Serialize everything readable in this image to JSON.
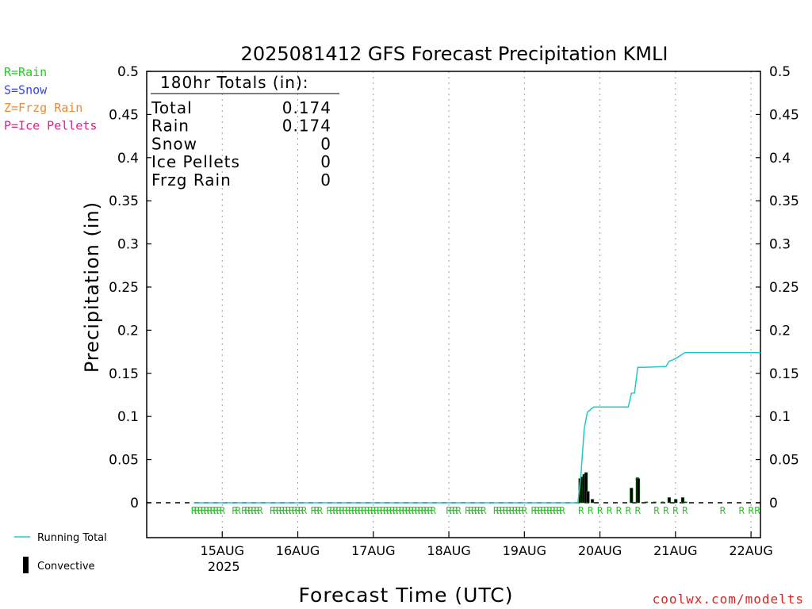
{
  "legend_ptype": [
    {
      "label": "R=Rain",
      "color": "#22cc22"
    },
    {
      "label": "S=Snow",
      "color": "#3344ee"
    },
    {
      "label": "Z=Frzg Rain",
      "color": "#ee8833"
    },
    {
      "label": "P=Ice Pellets",
      "color": "#dd2288"
    }
  ],
  "chart_data": {
    "type": "bar",
    "title": "2025081412 GFS Forecast Precipitation KMLI",
    "xlabel": "Forecast Time (UTC)",
    "ylabel": "Precipitation (in)",
    "ylim": [
      0,
      0.5
    ],
    "yticks": [
      "0",
      "0.05",
      "0.1",
      "0.15",
      "0.2",
      "0.25",
      "0.3",
      "0.35",
      "0.4",
      "0.45",
      "0.5"
    ],
    "xlim_hours": [
      -15,
      180
    ],
    "xticks": [
      {
        "hour": 9,
        "label": "15AUG",
        "sub": "2025"
      },
      {
        "hour": 33,
        "label": "16AUG",
        "sub": ""
      },
      {
        "hour": 57,
        "label": "17AUG",
        "sub": ""
      },
      {
        "hour": 81,
        "label": "18AUG",
        "sub": ""
      },
      {
        "hour": 105,
        "label": "19AUG",
        "sub": ""
      },
      {
        "hour": 129,
        "label": "20AUG",
        "sub": ""
      },
      {
        "hour": 153,
        "label": "21AUG",
        "sub": ""
      },
      {
        "hour": 177,
        "label": "22AUG",
        "sub": ""
      }
    ],
    "totals_header": "180hr Totals (in):",
    "totals": [
      {
        "label": "Total",
        "value": "0.174"
      },
      {
        "label": "Rain",
        "value": "0.174"
      },
      {
        "label": "Snow",
        "value": "0"
      },
      {
        "label": "Ice Pellets",
        "value": "0"
      },
      {
        "label": "Frzg Rain",
        "value": "0"
      }
    ],
    "running_total": {
      "name": "Running Total",
      "color": "#22c8c8",
      "x": [
        0,
        122,
        123,
        124,
        125,
        126,
        127,
        131,
        138,
        139,
        140,
        141,
        143,
        150,
        151,
        153,
        156,
        180
      ],
      "y": [
        0,
        0,
        0.035,
        0.085,
        0.105,
        0.108,
        0.111,
        0.111,
        0.111,
        0.127,
        0.127,
        0.157,
        0.157,
        0.158,
        0.164,
        0.167,
        0.174,
        0.174
      ]
    },
    "precip_bars": {
      "name": "Convective",
      "x": [
        122.7,
        123.3,
        124.0,
        124.6,
        125.2,
        126.6,
        139.0,
        140.9,
        141.2,
        143.7,
        146.4,
        148.9,
        151.0,
        153.1,
        155.3,
        156.2
      ],
      "values": [
        0.028,
        0.03,
        0.033,
        0.035,
        0.013,
        0.004,
        0.017,
        0.029,
        0.028,
        0.001,
        0.001,
        0.001,
        0.006,
        0.004,
        0.006,
        0.001
      ]
    },
    "ptype_markers": {
      "letter": "R",
      "hours": [
        0,
        1,
        2,
        3,
        4,
        5,
        6,
        7,
        8,
        9,
        13,
        14,
        16,
        17,
        18,
        19,
        20,
        21,
        25,
        26,
        27,
        28,
        29,
        30,
        31,
        32,
        33,
        34,
        35,
        38,
        39,
        40,
        43,
        44,
        45,
        46,
        47,
        48,
        49,
        50,
        51,
        52,
        53,
        54,
        55,
        56,
        57,
        58,
        59,
        60,
        61,
        62,
        63,
        64,
        65,
        66,
        67,
        68,
        69,
        70,
        71,
        72,
        73,
        74,
        75,
        76,
        81,
        82,
        83,
        84,
        87,
        88,
        89,
        90,
        91,
        92,
        96,
        97,
        98,
        99,
        100,
        101,
        102,
        103,
        104,
        105,
        108,
        109,
        110,
        111,
        112,
        113,
        114,
        115,
        116,
        117,
        123,
        126,
        129,
        132,
        135,
        138,
        141,
        147,
        150,
        153,
        156,
        168,
        174,
        177,
        179
      ]
    },
    "legend_bottom": [
      {
        "label": "Running Total"
      },
      {
        "label": "Convective"
      }
    ],
    "credit": "coolwx.com/modelts"
  }
}
